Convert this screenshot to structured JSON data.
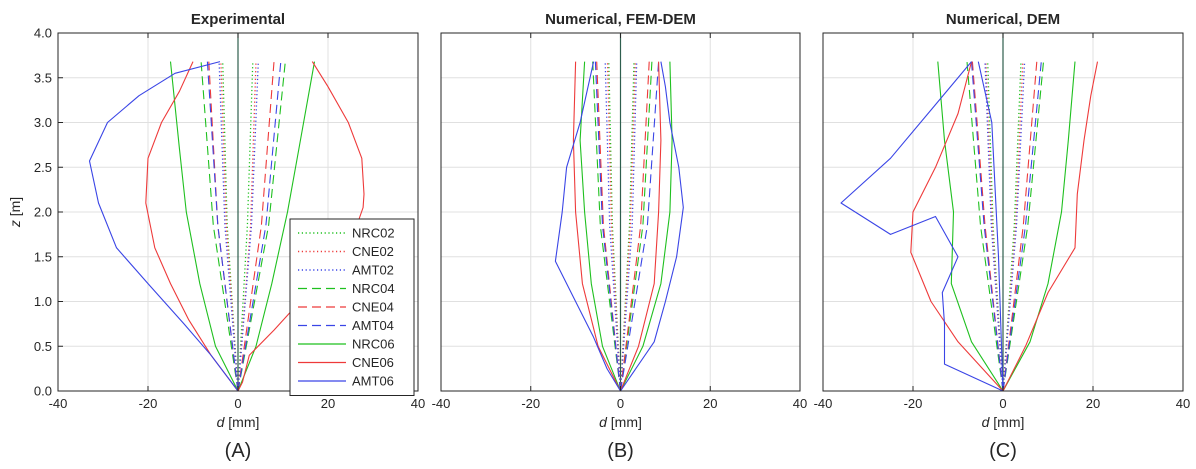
{
  "chart_data": [
    {
      "panel": "(A)",
      "type": "line",
      "title": "Experimental",
      "xlabel": "d [mm]",
      "ylabel": "z [m]",
      "xlim": [
        -40,
        40
      ],
      "ylim": [
        0,
        4
      ],
      "xticks": [
        -40,
        -20,
        0,
        20,
        40
      ],
      "yticks": [
        0.0,
        0.5,
        1.0,
        1.5,
        2.0,
        2.5,
        3.0,
        3.5,
        4.0
      ],
      "grid": true,
      "legend": "bottom-right",
      "series": [
        {
          "name": "NRC02",
          "dash": "dotted",
          "color": "#1fc01f",
          "x": [
            0,
            -2.4,
            -3.4
          ],
          "y": [
            0,
            1.85,
            3.68
          ]
        },
        {
          "name": "NRC02",
          "dash": "dotted",
          "color": "#1fc01f",
          "x": [
            0,
            2.1,
            3.3
          ],
          "y": [
            0,
            1.85,
            3.68
          ]
        },
        {
          "name": "CNE02",
          "dash": "dotted",
          "color": "#ee3a3a",
          "x": [
            0,
            -2.6,
            -3.8
          ],
          "y": [
            0,
            1.85,
            3.68
          ]
        },
        {
          "name": "CNE02",
          "dash": "dotted",
          "color": "#ee3a3a",
          "x": [
            0,
            2.8,
            4.0
          ],
          "y": [
            0,
            1.85,
            3.68
          ]
        },
        {
          "name": "AMT02",
          "dash": "dotted",
          "color": "#3a45e6",
          "x": [
            0,
            -2.9,
            -4.2
          ],
          "y": [
            0,
            1.85,
            3.68
          ]
        },
        {
          "name": "AMT02",
          "dash": "dotted",
          "color": "#3a45e6",
          "x": [
            0,
            3.0,
            4.5
          ],
          "y": [
            0,
            1.85,
            3.68
          ]
        },
        {
          "name": "NRC04",
          "dash": "dashed",
          "color": "#1fc01f",
          "x": [
            0,
            -5.5,
            -8.2
          ],
          "y": [
            0,
            1.85,
            3.68
          ]
        },
        {
          "name": "NRC04",
          "dash": "dashed",
          "color": "#1fc01f",
          "x": [
            0,
            6.8,
            10.5
          ],
          "y": [
            0,
            1.85,
            3.68
          ]
        },
        {
          "name": "CNE04",
          "dash": "dashed",
          "color": "#ee3a3a",
          "x": [
            0,
            -4.5,
            -6.5
          ],
          "y": [
            0,
            1.85,
            3.68
          ]
        },
        {
          "name": "CNE04",
          "dash": "dashed",
          "color": "#ee3a3a",
          "x": [
            0,
            5.2,
            8.0
          ],
          "y": [
            0,
            1.85,
            3.68
          ]
        },
        {
          "name": "AMT04",
          "dash": "dashed",
          "color": "#3a45e6",
          "x": [
            0,
            -4.5,
            -6.8
          ],
          "y": [
            0,
            1.85,
            3.68
          ]
        },
        {
          "name": "AMT04",
          "dash": "dashed",
          "color": "#3a45e6",
          "x": [
            0,
            6.2,
            9.5
          ],
          "y": [
            0,
            1.85,
            3.68
          ]
        },
        {
          "name": "NRC06",
          "color": "#1fc01f",
          "x": [
            0,
            -5,
            -8.5,
            -11.5,
            -13,
            -15
          ],
          "y": [
            0,
            0.5,
            1.2,
            2.0,
            2.7,
            3.68
          ]
        },
        {
          "name": "NRC06",
          "color": "#1fc01f",
          "x": [
            0,
            4,
            7.5,
            11,
            13.5,
            17
          ],
          "y": [
            0,
            0.5,
            1.2,
            2.0,
            2.7,
            3.68
          ]
        },
        {
          "name": "CNE06",
          "color": "#ee3a3a",
          "x": [
            0,
            -6,
            -11,
            -15,
            -18.5,
            -20.5,
            -20,
            -17,
            -13,
            -10
          ],
          "y": [
            0,
            0.4,
            0.8,
            1.2,
            1.6,
            2.1,
            2.6,
            3.0,
            3.35,
            3.68
          ]
        },
        {
          "name": "CNE06",
          "color": "#ee3a3a",
          "x": [
            0,
            1,
            2.5,
            8,
            12,
            15,
            19,
            25,
            27.8,
            28,
            27.5,
            24.5,
            20,
            16.5
          ],
          "y": [
            0,
            0.1,
            0.4,
            0.68,
            0.9,
            1.05,
            1.25,
            1.65,
            2.05,
            2.2,
            2.6,
            3.0,
            3.4,
            3.68
          ]
        },
        {
          "name": "AMT06",
          "color": "#3a45e6",
          "x": [
            0,
            -6,
            -12,
            -20,
            -27,
            -31,
            -33,
            -29,
            -22,
            -14,
            -4
          ],
          "y": [
            0,
            0.4,
            0.75,
            1.2,
            1.6,
            2.1,
            2.57,
            3.0,
            3.3,
            3.55,
            3.68
          ]
        }
      ]
    },
    {
      "panel": "(B)",
      "type": "line",
      "title": "Numerical, FEM-DEM",
      "xlabel": "d [mm]",
      "ylabel": "",
      "xlim": [
        -40,
        40
      ],
      "ylim": [
        0,
        4
      ],
      "xticks": [
        -40,
        -20,
        0,
        20,
        40
      ],
      "yticks": [],
      "grid": true,
      "series": [
        {
          "name": "NRC02",
          "dash": "dotted",
          "color": "#1fc01f",
          "x": [
            0,
            -1.8,
            -2.6
          ],
          "y": [
            0,
            1.85,
            3.68
          ]
        },
        {
          "name": "NRC02",
          "dash": "dotted",
          "color": "#1fc01f",
          "x": [
            0,
            2.0,
            3.0
          ],
          "y": [
            0,
            1.85,
            3.68
          ]
        },
        {
          "name": "CNE02",
          "dash": "dotted",
          "color": "#ee3a3a",
          "x": [
            0,
            -2.0,
            -2.9
          ],
          "y": [
            0,
            1.85,
            3.68
          ]
        },
        {
          "name": "CNE02",
          "dash": "dotted",
          "color": "#ee3a3a",
          "x": [
            0,
            2.2,
            3.3
          ],
          "y": [
            0,
            1.85,
            3.68
          ]
        },
        {
          "name": "AMT02",
          "dash": "dotted",
          "color": "#3a45e6",
          "x": [
            0,
            -2.4,
            -3.4
          ],
          "y": [
            0,
            1.85,
            3.68
          ]
        },
        {
          "name": "AMT02",
          "dash": "dotted",
          "color": "#3a45e6",
          "x": [
            0,
            2.6,
            3.6
          ],
          "y": [
            0,
            1.85,
            3.68
          ]
        },
        {
          "name": "NRC04",
          "dash": "dashed",
          "color": "#1fc01f",
          "x": [
            0,
            -4.5,
            -6.2
          ],
          "y": [
            0,
            1.85,
            3.68
          ]
        },
        {
          "name": "NRC04",
          "dash": "dashed",
          "color": "#1fc01f",
          "x": [
            0,
            5.0,
            7.0
          ],
          "y": [
            0,
            1.85,
            3.68
          ]
        },
        {
          "name": "CNE04",
          "dash": "dashed",
          "color": "#ee3a3a",
          "x": [
            0,
            -3.8,
            -5.3
          ],
          "y": [
            0,
            1.85,
            3.68
          ]
        },
        {
          "name": "CNE04",
          "dash": "dashed",
          "color": "#ee3a3a",
          "x": [
            0,
            4.5,
            6.4
          ],
          "y": [
            0,
            1.85,
            3.68
          ]
        },
        {
          "name": "AMT04",
          "dash": "dashed",
          "color": "#3a45e6",
          "x": [
            0,
            -4.0,
            -5.6
          ],
          "y": [
            0,
            1.85,
            3.68
          ]
        },
        {
          "name": "AMT04",
          "dash": "dashed",
          "color": "#3a45e6",
          "x": [
            0,
            6.0,
            8.5
          ],
          "y": [
            0,
            1.85,
            3.68
          ]
        },
        {
          "name": "NRC06",
          "color": "#1fc01f",
          "x": [
            0,
            -4,
            -6.5,
            -8,
            -9,
            -8
          ],
          "y": [
            0,
            0.5,
            1.2,
            2.0,
            2.8,
            3.68
          ]
        },
        {
          "name": "NRC06",
          "color": "#1fc01f",
          "x": [
            0,
            5,
            9,
            11,
            11.5,
            11
          ],
          "y": [
            0,
            0.5,
            1.2,
            2.0,
            2.8,
            3.68
          ]
        },
        {
          "name": "CNE06",
          "color": "#ee3a3a",
          "x": [
            0,
            -5,
            -8.5,
            -10,
            -10.5,
            -10
          ],
          "y": [
            0,
            0.5,
            1.2,
            2.0,
            2.8,
            3.68
          ]
        },
        {
          "name": "CNE06",
          "color": "#ee3a3a",
          "x": [
            0,
            4,
            7.5,
            8.5,
            9,
            8.5
          ],
          "y": [
            0,
            0.5,
            1.2,
            2.0,
            2.8,
            3.68
          ]
        },
        {
          "name": "AMT06",
          "color": "#3a45e6",
          "x": [
            0,
            -3,
            -6,
            -10,
            -14.5,
            -13,
            -12,
            -9,
            -6
          ],
          "y": [
            0,
            0.25,
            0.6,
            1.0,
            1.45,
            2.0,
            2.5,
            3.0,
            3.68
          ]
        },
        {
          "name": "AMT06",
          "color": "#3a45e6",
          "x": [
            0,
            7.5,
            10,
            12.5,
            14,
            13,
            11,
            10,
            9
          ],
          "y": [
            0,
            0.55,
            1.0,
            1.5,
            2.05,
            2.5,
            3.0,
            3.4,
            3.68
          ]
        }
      ]
    },
    {
      "panel": "(C)",
      "type": "line",
      "title": "Numerical, DEM",
      "xlabel": "d [mm]",
      "ylabel": "",
      "xlim": [
        -40,
        40
      ],
      "ylim": [
        0,
        4
      ],
      "xticks": [
        -40,
        -20,
        0,
        20,
        40
      ],
      "yticks": [],
      "grid": true,
      "series": [
        {
          "name": "NRC02",
          "dash": "dotted",
          "color": "#1fc01f",
          "x": [
            0,
            -2.2,
            -3.4
          ],
          "y": [
            0,
            1.85,
            3.68
          ]
        },
        {
          "name": "NRC02",
          "dash": "dotted",
          "color": "#1fc01f",
          "x": [
            0,
            2.5,
            4.0
          ],
          "y": [
            0,
            1.85,
            3.68
          ]
        },
        {
          "name": "CNE02",
          "dash": "dotted",
          "color": "#ee3a3a",
          "x": [
            0,
            -2.4,
            -3.8
          ],
          "y": [
            0,
            1.85,
            3.68
          ]
        },
        {
          "name": "CNE02",
          "dash": "dotted",
          "color": "#ee3a3a",
          "x": [
            0,
            2.8,
            4.4
          ],
          "y": [
            0,
            1.85,
            3.68
          ]
        },
        {
          "name": "AMT02",
          "dash": "dotted",
          "color": "#3a45e6",
          "x": [
            0,
            -2.6,
            -4.0
          ],
          "y": [
            0,
            1.85,
            3.68
          ]
        },
        {
          "name": "AMT02",
          "dash": "dotted",
          "color": "#3a45e6",
          "x": [
            0,
            3.0,
            4.8
          ],
          "y": [
            0,
            1.85,
            3.68
          ]
        },
        {
          "name": "NRC04",
          "dash": "dashed",
          "color": "#1fc01f",
          "x": [
            0,
            -5.0,
            -8.0
          ],
          "y": [
            0,
            1.85,
            3.68
          ]
        },
        {
          "name": "NRC04",
          "dash": "dashed",
          "color": "#1fc01f",
          "x": [
            0,
            5.5,
            9.0
          ],
          "y": [
            0,
            1.85,
            3.68
          ]
        },
        {
          "name": "CNE04",
          "dash": "dashed",
          "color": "#ee3a3a",
          "x": [
            0,
            -4.0,
            -6.8
          ],
          "y": [
            0,
            1.85,
            3.68
          ]
        },
        {
          "name": "CNE04",
          "dash": "dashed",
          "color": "#ee3a3a",
          "x": [
            0,
            4.5,
            7.5
          ],
          "y": [
            0,
            1.85,
            3.68
          ]
        },
        {
          "name": "AMT04",
          "dash": "dashed",
          "color": "#3a45e6",
          "x": [
            0,
            -4.2,
            -7.0
          ],
          "y": [
            0,
            1.85,
            3.68
          ]
        },
        {
          "name": "AMT04",
          "dash": "dashed",
          "color": "#3a45e6",
          "x": [
            0,
            5.0,
            8.5
          ],
          "y": [
            0,
            1.85,
            3.68
          ]
        },
        {
          "name": "NRC06",
          "color": "#1fc01f",
          "x": [
            0,
            -7,
            -11.5,
            -11,
            -13,
            -14.5
          ],
          "y": [
            0,
            0.55,
            1.2,
            2.0,
            2.8,
            3.68
          ]
        },
        {
          "name": "NRC06",
          "color": "#1fc01f",
          "x": [
            0,
            6,
            10,
            13,
            14.5,
            16
          ],
          "y": [
            0,
            0.55,
            1.2,
            2.0,
            2.8,
            3.68
          ]
        },
        {
          "name": "CNE06",
          "color": "#ee3a3a",
          "x": [
            0,
            -10,
            -16,
            -20.5,
            -20,
            -15,
            -10,
            -7
          ],
          "y": [
            0,
            0.55,
            1.0,
            1.55,
            2.0,
            2.5,
            3.1,
            3.68
          ]
        },
        {
          "name": "CNE06",
          "color": "#ee3a3a",
          "x": [
            0,
            5,
            10,
            16,
            16.5,
            18,
            19.5,
            21
          ],
          "y": [
            0,
            0.5,
            1.1,
            1.6,
            2.2,
            2.8,
            3.3,
            3.68
          ]
        },
        {
          "name": "AMT06",
          "color": "#3a45e6",
          "x": [
            0,
            -13,
            -13,
            -13.5,
            -10,
            -15,
            -25,
            -36,
            -25,
            -15,
            -7
          ],
          "y": [
            0,
            0.3,
            0.75,
            1.1,
            1.5,
            1.95,
            1.75,
            2.1,
            2.6,
            3.2,
            3.68
          ]
        },
        {
          "name": "AMT06",
          "color": "#3a45e6",
          "x": [
            0,
            -1,
            -2.5,
            -5.5
          ],
          "y": [
            0,
            1.5,
            3.0,
            3.68
          ]
        }
      ]
    }
  ],
  "legend": {
    "entries": [
      {
        "label": "NRC02",
        "color": "#1fc01f",
        "dash": "dotted"
      },
      {
        "label": "CNE02",
        "color": "#ee3a3a",
        "dash": "dotted"
      },
      {
        "label": "AMT02",
        "color": "#3a45e6",
        "dash": "dotted"
      },
      {
        "label": "NRC04",
        "color": "#1fc01f",
        "dash": "dashed"
      },
      {
        "label": "CNE04",
        "color": "#ee3a3a",
        "dash": "dashed"
      },
      {
        "label": "AMT04",
        "color": "#3a45e6",
        "dash": "dashed"
      },
      {
        "label": "NRC06",
        "color": "#1fc01f",
        "dash": "solid"
      },
      {
        "label": "CNE06",
        "color": "#ee3a3a",
        "dash": "solid"
      },
      {
        "label": "AMT06",
        "color": "#3a45e6",
        "dash": "solid"
      }
    ]
  },
  "colors": {
    "axis": "#262626",
    "grid": "#e0e0e0",
    "centerline": "#2e5e4e"
  }
}
